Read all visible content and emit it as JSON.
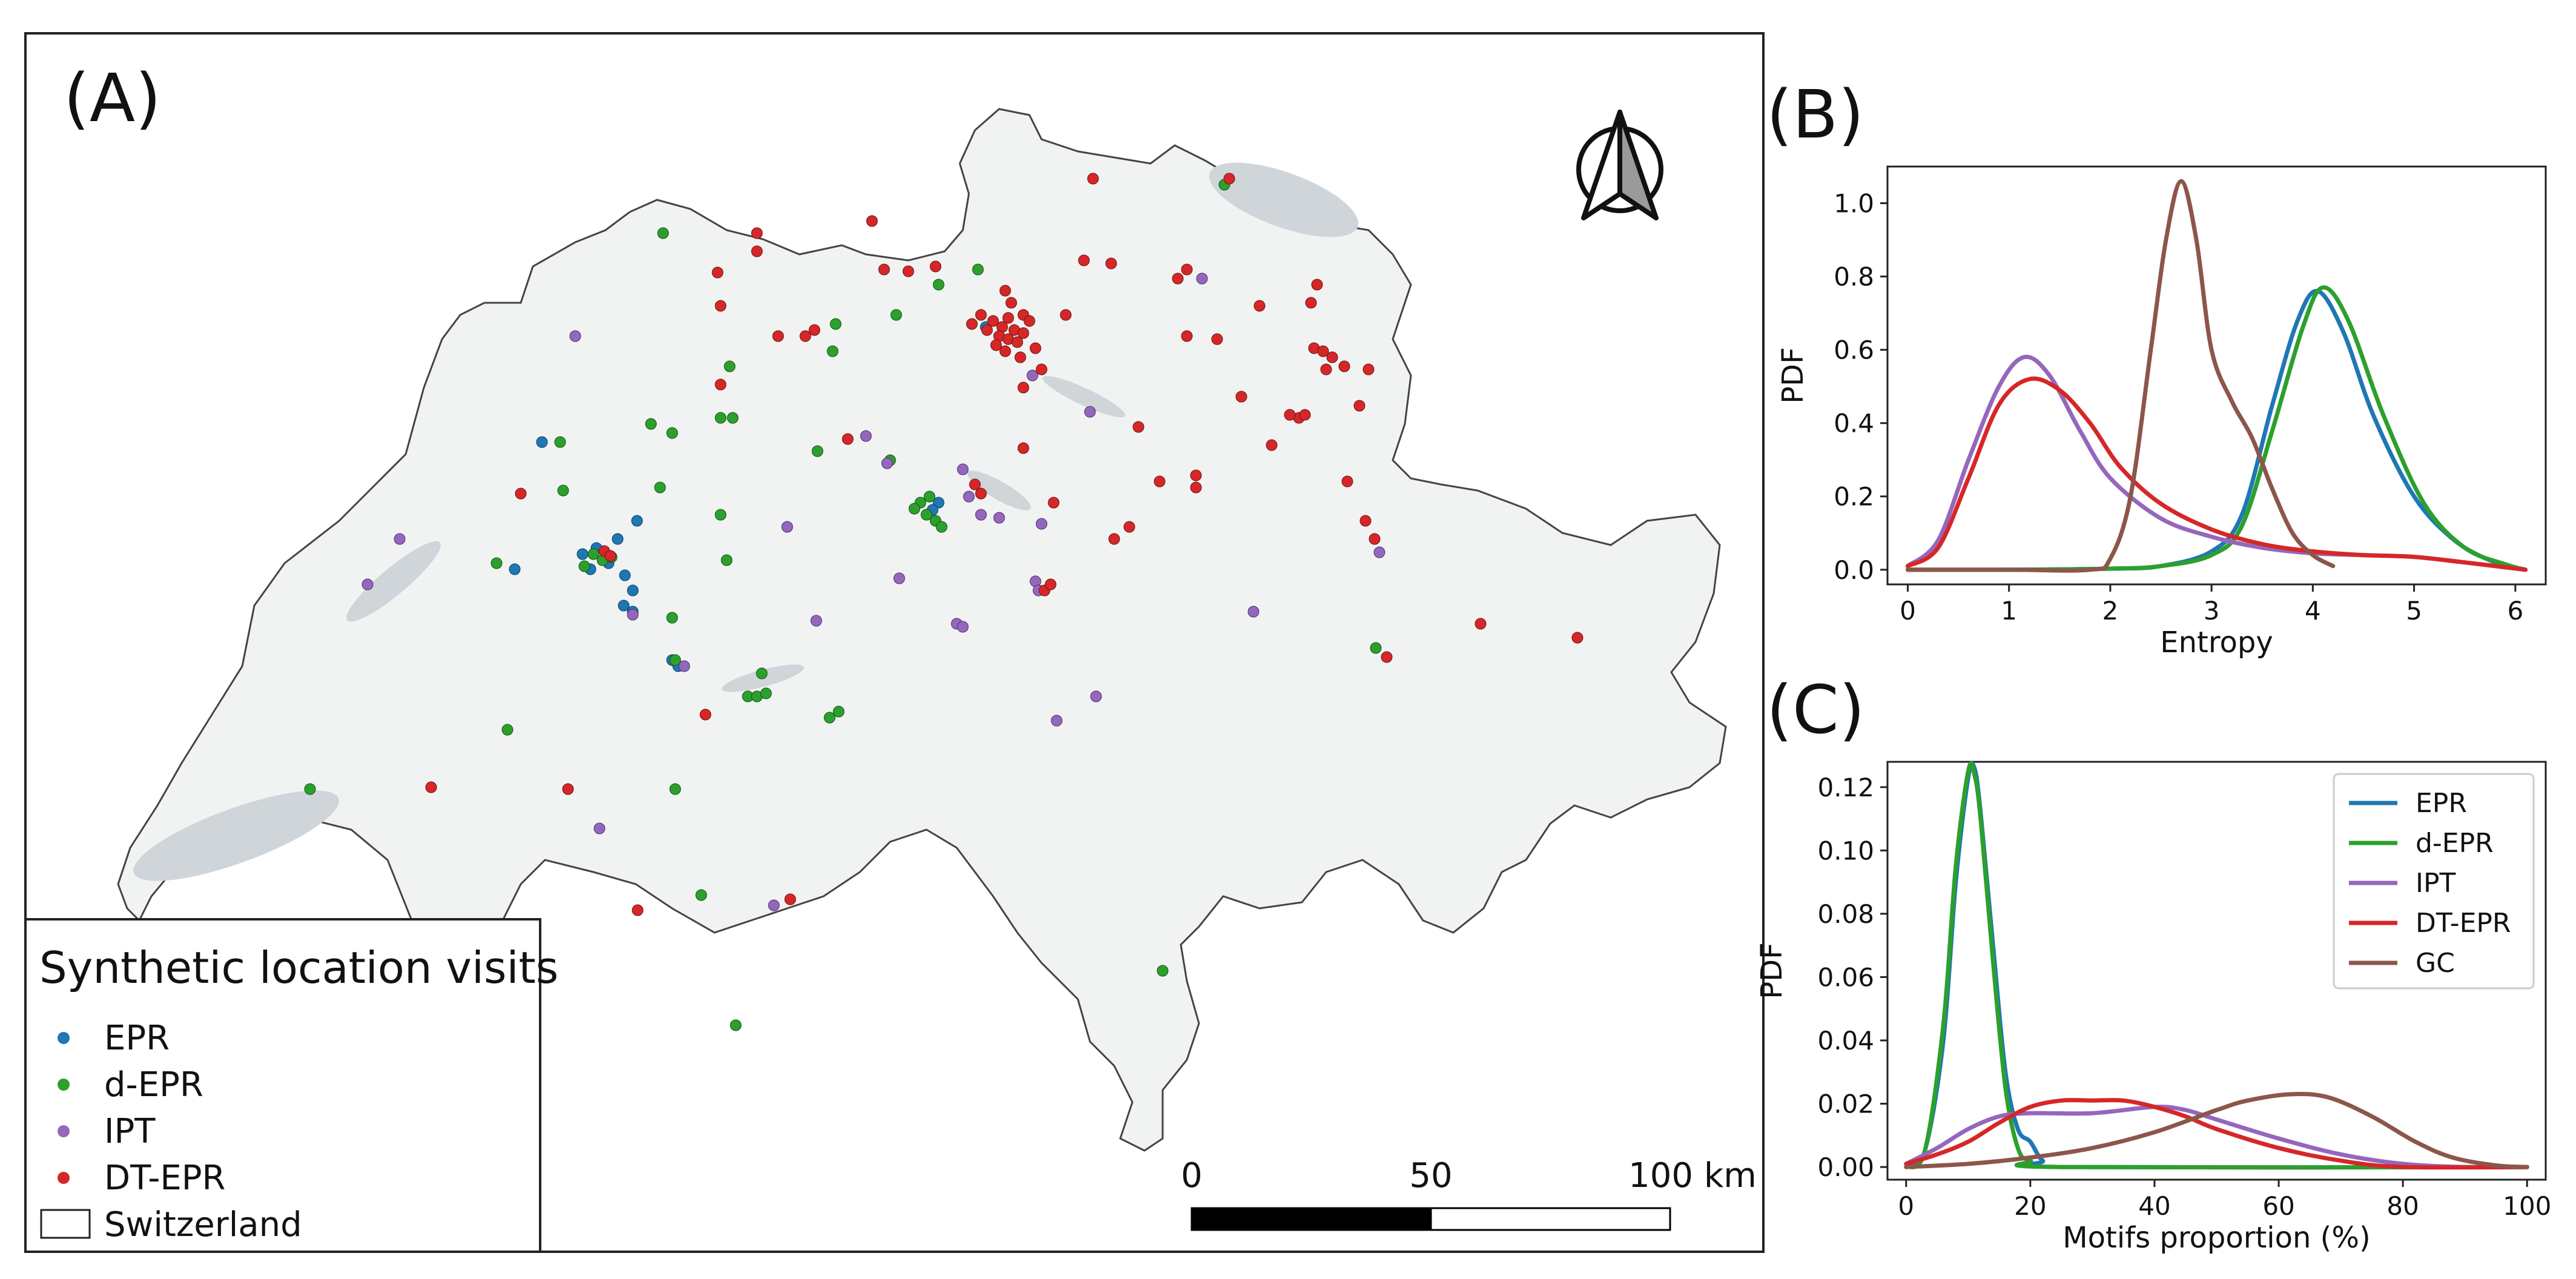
{
  "panel_a": {
    "label": "(A)",
    "legend": {
      "title": "Synthetic location visits",
      "items": [
        {
          "label": "EPR",
          "color": "#1f77b4",
          "kind": "dot"
        },
        {
          "label": "d-EPR",
          "color": "#2ca02c",
          "kind": "dot"
        },
        {
          "label": "IPT",
          "color": "#9467bd",
          "kind": "dot"
        },
        {
          "label": "DT-EPR",
          "color": "#d62728",
          "kind": "dot"
        },
        {
          "label": "Switzerland",
          "color": "#ffffff",
          "kind": "box"
        }
      ]
    },
    "scalebar": {
      "ticks": [
        "0",
        "50",
        "100 km"
      ]
    },
    "north_arrow_icon": "north-arrow-icon"
  },
  "chart_data": [
    {
      "id": "B",
      "type": "line",
      "panel_label": "(B)",
      "xlabel": "Entropy",
      "ylabel": "PDF",
      "xlim": [
        -0.2,
        6.3
      ],
      "ylim": [
        -0.04,
        1.1
      ],
      "xticks": [
        0,
        1,
        2,
        3,
        4,
        5,
        6
      ],
      "yticks": [
        0.0,
        0.2,
        0.4,
        0.6,
        0.8,
        1.0
      ],
      "ytick_decimals": 1,
      "legend": null,
      "series": [
        {
          "name": "EPR",
          "color": "#1f77b4",
          "points": [
            [
              0,
              0
            ],
            [
              1,
              0
            ],
            [
              2,
              0.003
            ],
            [
              2.5,
              0.01
            ],
            [
              3,
              0.05
            ],
            [
              3.3,
              0.15
            ],
            [
              3.6,
              0.45
            ],
            [
              3.85,
              0.68
            ],
            [
              4.05,
              0.76
            ],
            [
              4.3,
              0.65
            ],
            [
              4.6,
              0.42
            ],
            [
              5.0,
              0.2
            ],
            [
              5.4,
              0.08
            ],
            [
              5.8,
              0.02
            ],
            [
              6.1,
              0
            ]
          ]
        },
        {
          "name": "d-EPR",
          "color": "#2ca02c",
          "points": [
            [
              0,
              0
            ],
            [
              1,
              0
            ],
            [
              2,
              0.003
            ],
            [
              2.5,
              0.01
            ],
            [
              3,
              0.04
            ],
            [
              3.3,
              0.12
            ],
            [
              3.6,
              0.38
            ],
            [
              3.9,
              0.66
            ],
            [
              4.1,
              0.77
            ],
            [
              4.35,
              0.68
            ],
            [
              4.7,
              0.42
            ],
            [
              5.1,
              0.18
            ],
            [
              5.5,
              0.06
            ],
            [
              5.9,
              0.015
            ],
            [
              6.1,
              0
            ]
          ]
        },
        {
          "name": "IPT",
          "color": "#9467bd",
          "points": [
            [
              0,
              0.01
            ],
            [
              0.3,
              0.08
            ],
            [
              0.6,
              0.3
            ],
            [
              0.9,
              0.5
            ],
            [
              1.15,
              0.58
            ],
            [
              1.4,
              0.53
            ],
            [
              1.7,
              0.38
            ],
            [
              2.0,
              0.25
            ],
            [
              2.5,
              0.14
            ],
            [
              3.0,
              0.09
            ],
            [
              3.5,
              0.06
            ],
            [
              4.0,
              0.045
            ],
            [
              4.5,
              0.04
            ],
            [
              5.0,
              0.035
            ],
            [
              5.5,
              0.02
            ],
            [
              6.1,
              0
            ]
          ]
        },
        {
          "name": "DT-EPR",
          "color": "#d62728",
          "points": [
            [
              0,
              0.01
            ],
            [
              0.3,
              0.06
            ],
            [
              0.6,
              0.25
            ],
            [
              0.9,
              0.45
            ],
            [
              1.2,
              0.52
            ],
            [
              1.5,
              0.49
            ],
            [
              1.8,
              0.4
            ],
            [
              2.1,
              0.28
            ],
            [
              2.5,
              0.18
            ],
            [
              3.0,
              0.11
            ],
            [
              3.5,
              0.07
            ],
            [
              4.0,
              0.05
            ],
            [
              4.5,
              0.04
            ],
            [
              5.0,
              0.035
            ],
            [
              5.5,
              0.02
            ],
            [
              6.1,
              0
            ]
          ]
        },
        {
          "name": "GC",
          "color": "#8c564b",
          "points": [
            [
              0,
              0
            ],
            [
              1,
              0
            ],
            [
              1.8,
              0
            ],
            [
              2.0,
              0.03
            ],
            [
              2.2,
              0.2
            ],
            [
              2.4,
              0.6
            ],
            [
              2.55,
              0.9
            ],
            [
              2.7,
              1.06
            ],
            [
              2.85,
              0.9
            ],
            [
              3.0,
              0.6
            ],
            [
              3.2,
              0.46
            ],
            [
              3.4,
              0.36
            ],
            [
              3.6,
              0.22
            ],
            [
              3.8,
              0.1
            ],
            [
              4.0,
              0.04
            ],
            [
              4.2,
              0.01
            ]
          ]
        }
      ]
    },
    {
      "id": "C",
      "type": "line",
      "panel_label": "(C)",
      "xlabel": "Motifs proportion (%)",
      "ylabel": "PDF",
      "xlim": [
        -3,
        103
      ],
      "ylim": [
        -0.004,
        0.128
      ],
      "xticks": [
        0,
        20,
        40,
        60,
        80,
        100
      ],
      "yticks": [
        0.0,
        0.02,
        0.04,
        0.06,
        0.08,
        0.1,
        0.12
      ],
      "ytick_decimals": 2,
      "legend": {
        "position": "upper right",
        "entries": [
          "EPR",
          "d-EPR",
          "IPT",
          "DT-EPR",
          "GC"
        ]
      },
      "series": [
        {
          "name": "EPR",
          "color": "#1f77b4",
          "points": [
            [
              0,
              0
            ],
            [
              3,
              0.005
            ],
            [
              6,
              0.04
            ],
            [
              8,
              0.09
            ],
            [
              10,
              0.123
            ],
            [
              11,
              0.126
            ],
            [
              12,
              0.112
            ],
            [
              14,
              0.07
            ],
            [
              16,
              0.03
            ],
            [
              18,
              0.012
            ],
            [
              20,
              0.008
            ],
            [
              22,
              0.002
            ],
            [
              25,
              0
            ],
            [
              100,
              0
            ]
          ]
        },
        {
          "name": "d-EPR",
          "color": "#2ca02c",
          "points": [
            [
              0,
              0
            ],
            [
              3,
              0.005
            ],
            [
              6,
              0.045
            ],
            [
              8,
              0.095
            ],
            [
              10,
              0.125
            ],
            [
              11,
              0.124
            ],
            [
              12,
              0.11
            ],
            [
              14,
              0.065
            ],
            [
              16,
              0.025
            ],
            [
              18,
              0.006
            ],
            [
              20,
              0.002
            ],
            [
              25,
              0
            ],
            [
              100,
              0
            ]
          ]
        },
        {
          "name": "IPT",
          "color": "#9467bd",
          "points": [
            [
              0,
              0.001
            ],
            [
              5,
              0.006
            ],
            [
              10,
              0.012
            ],
            [
              15,
              0.016
            ],
            [
              20,
              0.017
            ],
            [
              30,
              0.017
            ],
            [
              40,
              0.019
            ],
            [
              45,
              0.018
            ],
            [
              50,
              0.015
            ],
            [
              60,
              0.009
            ],
            [
              70,
              0.004
            ],
            [
              80,
              0.001
            ],
            [
              90,
              0
            ],
            [
              100,
              0
            ]
          ]
        },
        {
          "name": "DT-EPR",
          "color": "#d62728",
          "points": [
            [
              0,
              0.001
            ],
            [
              5,
              0.004
            ],
            [
              10,
              0.008
            ],
            [
              15,
              0.014
            ],
            [
              20,
              0.019
            ],
            [
              25,
              0.021
            ],
            [
              30,
              0.021
            ],
            [
              35,
              0.021
            ],
            [
              40,
              0.019
            ],
            [
              45,
              0.016
            ],
            [
              50,
              0.012
            ],
            [
              60,
              0.006
            ],
            [
              70,
              0.002
            ],
            [
              80,
              0
            ],
            [
              100,
              0
            ]
          ]
        },
        {
          "name": "GC",
          "color": "#8c564b",
          "points": [
            [
              0,
              0
            ],
            [
              10,
              0.001
            ],
            [
              20,
              0.003
            ],
            [
              30,
              0.006
            ],
            [
              40,
              0.011
            ],
            [
              50,
              0.018
            ],
            [
              55,
              0.021
            ],
            [
              62,
              0.023
            ],
            [
              68,
              0.022
            ],
            [
              75,
              0.016
            ],
            [
              82,
              0.008
            ],
            [
              88,
              0.003
            ],
            [
              95,
              0.0005
            ],
            [
              100,
              0
            ]
          ]
        }
      ]
    }
  ]
}
